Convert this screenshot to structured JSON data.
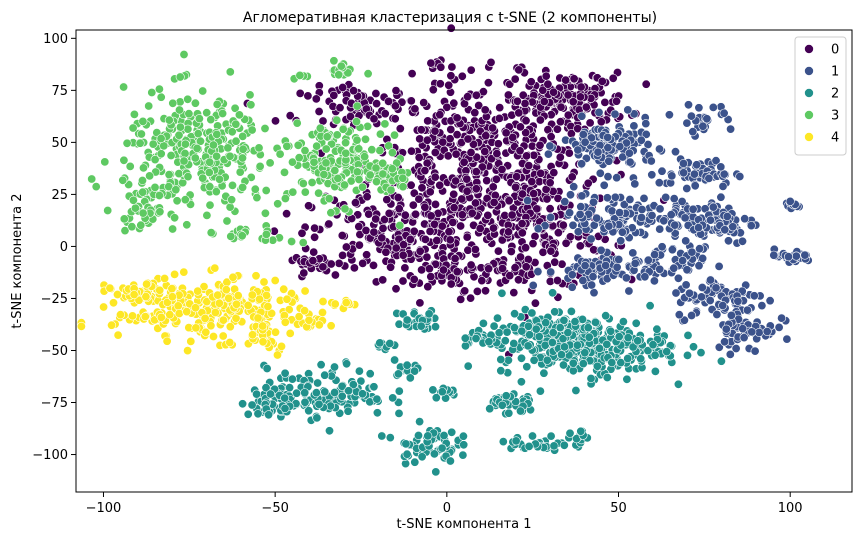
{
  "chart_data": {
    "type": "scatter",
    "title": "Агломеративная кластеризация с t-SNE (2 компоненты)",
    "xlabel": "t-SNE компонента 1",
    "ylabel": "t-SNE компонента 2",
    "xlim": [
      -108,
      118
    ],
    "ylim": [
      -118,
      104
    ],
    "xticks": [
      -100,
      -50,
      0,
      50,
      100
    ],
    "xtick_labels": [
      "−100",
      "−50",
      "0",
      "50",
      "100"
    ],
    "yticks": [
      -100,
      -75,
      -50,
      -25,
      0,
      25,
      50,
      75,
      100
    ],
    "ytick_labels": [
      "−100",
      "−75",
      "−50",
      "−25",
      "0",
      "25",
      "50",
      "75",
      "100"
    ],
    "grid": false,
    "legend_position": "top-right",
    "series": [
      {
        "name": "0",
        "color": "#440154",
        "clusters": [
          {
            "cx": 8,
            "cy": 40,
            "rx": 28,
            "ry": 36,
            "n": 460
          },
          {
            "cx": 25,
            "cy": 10,
            "rx": 22,
            "ry": 28,
            "n": 220
          },
          {
            "cx": -15,
            "cy": 5,
            "rx": 22,
            "ry": 18,
            "n": 200
          },
          {
            "cx": 35,
            "cy": 70,
            "rx": 16,
            "ry": 12,
            "n": 170
          },
          {
            "cx": -25,
            "cy": 68,
            "rx": 16,
            "ry": 8,
            "n": 70
          },
          {
            "cx": -38,
            "cy": -8,
            "rx": 6,
            "ry": 4,
            "n": 25
          },
          {
            "cx": 5,
            "cy": -15,
            "rx": 18,
            "ry": 8,
            "n": 60
          },
          {
            "cx": -3,
            "cy": 87,
            "rx": 3,
            "ry": 2,
            "n": 8
          }
        ]
      },
      {
        "name": "1",
        "color": "#3b528b",
        "clusters": [
          {
            "cx": 47,
            "cy": 48,
            "rx": 12,
            "ry": 11,
            "n": 140
          },
          {
            "cx": 50,
            "cy": 15,
            "rx": 16,
            "ry": 10,
            "n": 110
          },
          {
            "cx": 42,
            "cy": -12,
            "rx": 12,
            "ry": 8,
            "n": 60
          },
          {
            "cx": 62,
            "cy": -8,
            "rx": 12,
            "ry": 7,
            "n": 60
          },
          {
            "cx": 73,
            "cy": 35,
            "rx": 10,
            "ry": 6,
            "n": 60
          },
          {
            "cx": 77,
            "cy": 12,
            "rx": 12,
            "ry": 10,
            "n": 90
          },
          {
            "cx": 80,
            "cy": -25,
            "rx": 12,
            "ry": 9,
            "n": 80
          },
          {
            "cx": 87,
            "cy": -40,
            "rx": 8,
            "ry": 10,
            "n": 60
          },
          {
            "cx": 75,
            "cy": 62,
            "rx": 8,
            "ry": 6,
            "n": 25
          },
          {
            "cx": 100,
            "cy": 20,
            "rx": 3,
            "ry": 2,
            "n": 10
          },
          {
            "cx": 100,
            "cy": -5,
            "rx": 6,
            "ry": 3,
            "n": 25
          }
        ]
      },
      {
        "name": "2",
        "color": "#21918c",
        "clusters": [
          {
            "cx": 40,
            "cy": -48,
            "rx": 22,
            "ry": 13,
            "n": 300
          },
          {
            "cx": 28,
            "cy": -42,
            "rx": 14,
            "ry": 10,
            "n": 90
          },
          {
            "cx": -35,
            "cy": -70,
            "rx": 16,
            "ry": 11,
            "n": 130
          },
          {
            "cx": -50,
            "cy": -75,
            "rx": 9,
            "ry": 6,
            "n": 45
          },
          {
            "cx": -8,
            "cy": -36,
            "rx": 6,
            "ry": 5,
            "n": 30
          },
          {
            "cx": -6,
            "cy": -95,
            "rx": 8,
            "ry": 8,
            "n": 60
          },
          {
            "cx": 18,
            "cy": -75,
            "rx": 7,
            "ry": 5,
            "n": 35
          },
          {
            "cx": 27,
            "cy": -95,
            "rx": 8,
            "ry": 4,
            "n": 30
          },
          {
            "cx": 10,
            "cy": -45,
            "rx": 6,
            "ry": 4,
            "n": 20
          },
          {
            "cx": -12,
            "cy": -58,
            "rx": 4,
            "ry": 3,
            "n": 12
          },
          {
            "cx": 0,
            "cy": -70,
            "rx": 4,
            "ry": 3,
            "n": 12
          },
          {
            "cx": 38,
            "cy": -92,
            "rx": 3,
            "ry": 3,
            "n": 10
          },
          {
            "cx": -18,
            "cy": -48,
            "rx": 3,
            "ry": 2,
            "n": 8
          }
        ]
      },
      {
        "name": "3",
        "color": "#5ec962",
        "clusters": [
          {
            "cx": -72,
            "cy": 45,
            "rx": 20,
            "ry": 26,
            "n": 320
          },
          {
            "cx": -88,
            "cy": 18,
            "rx": 7,
            "ry": 8,
            "n": 40
          },
          {
            "cx": -32,
            "cy": 40,
            "rx": 13,
            "ry": 18,
            "n": 170
          },
          {
            "cx": -17,
            "cy": 33,
            "rx": 6,
            "ry": 7,
            "n": 40
          },
          {
            "cx": -30,
            "cy": 85,
            "rx": 3,
            "ry": 4,
            "n": 18
          },
          {
            "cx": -42,
            "cy": 82,
            "rx": 2,
            "ry": 1,
            "n": 6
          },
          {
            "cx": -55,
            "cy": 5,
            "rx": 10,
            "ry": 4,
            "n": 20
          }
        ]
      },
      {
        "name": "4",
        "color": "#fde725",
        "clusters": [
          {
            "cx": -70,
            "cy": -30,
            "rx": 24,
            "ry": 13,
            "n": 280
          },
          {
            "cx": -90,
            "cy": -22,
            "rx": 5,
            "ry": 4,
            "n": 25
          },
          {
            "cx": -52,
            "cy": -42,
            "rx": 6,
            "ry": 8,
            "n": 30
          },
          {
            "cx": -40,
            "cy": -35,
            "rx": 5,
            "ry": 4,
            "n": 15
          },
          {
            "cx": -30,
            "cy": -28,
            "rx": 4,
            "ry": 3,
            "n": 10
          }
        ]
      }
    ]
  },
  "legend": {
    "entries": [
      "0",
      "1",
      "2",
      "3",
      "4"
    ],
    "colors": [
      "#440154",
      "#3b528b",
      "#21918c",
      "#5ec962",
      "#fde725"
    ]
  }
}
